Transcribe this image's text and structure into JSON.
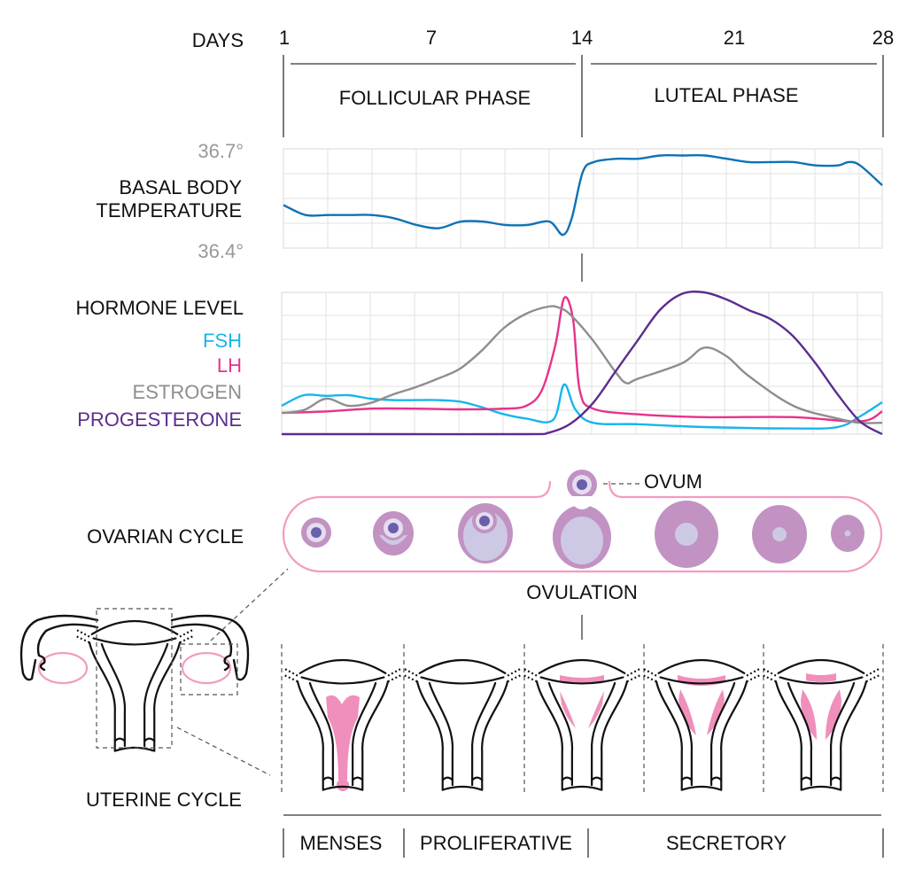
{
  "header": {
    "days_label": "DAYS",
    "day_ticks": [
      "1",
      "7",
      "14",
      "21",
      "28"
    ],
    "phases": [
      "FOLLICULAR PHASE",
      "LUTEAL PHASE"
    ]
  },
  "temperature": {
    "label_line1": "BASAL BODY",
    "label_line2": "TEMPERATURE",
    "max_label": "36.7°",
    "min_label": "36.4°",
    "color": "#0e72b5"
  },
  "hormones": {
    "title": "HORMONE LEVEL",
    "legend": [
      {
        "name": "FSH",
        "color": "#17b6ea"
      },
      {
        "name": "LH",
        "color": "#e8318c"
      },
      {
        "name": "ESTROGEN",
        "color": "#8e8e8e"
      },
      {
        "name": "PROGESTERONE",
        "color": "#5a2d8f"
      }
    ]
  },
  "ovarian": {
    "label": "OVARIAN CYCLE",
    "ovum_label": "OVUM",
    "ovulation_label": "OVULATION",
    "colors": {
      "follicle": "#c192c2",
      "antrum": "#cdc9e4",
      "nucleus": "#6b5fa9",
      "capsule": "#f39bc2"
    }
  },
  "uterine": {
    "label": "UTERINE CYCLE",
    "phases": [
      "MENSES",
      "PROLIFERATIVE",
      "SECRETORY"
    ],
    "lining_color": "#f08fbb"
  },
  "chart_data": [
    {
      "type": "line",
      "title": "BASAL BODY TEMPERATURE",
      "xlabel": "DAYS",
      "ylim": [
        36.4,
        36.7
      ],
      "xlim": [
        1,
        28
      ],
      "grid": true,
      "series": [
        {
          "name": "BASAL BODY TEMPERATURE",
          "x": [
            1,
            2,
            3,
            4,
            5,
            6,
            7,
            8,
            9,
            10,
            11,
            12,
            13,
            13.6,
            14,
            14.5,
            15,
            16,
            17,
            18,
            19,
            20,
            21,
            22,
            23,
            24,
            25,
            26,
            26.5,
            27,
            28
          ],
          "y": [
            36.53,
            36.5,
            36.5,
            36.5,
            36.5,
            36.49,
            36.47,
            36.46,
            36.48,
            36.48,
            36.47,
            36.47,
            36.48,
            36.44,
            36.49,
            36.63,
            36.66,
            36.67,
            36.67,
            36.68,
            36.68,
            36.68,
            36.67,
            36.66,
            36.66,
            36.66,
            36.65,
            36.65,
            36.66,
            36.65,
            36.59
          ]
        }
      ]
    },
    {
      "type": "line",
      "title": "HORMONE LEVEL",
      "xlabel": "DAYS",
      "xlim": [
        1,
        28
      ],
      "ylim": [
        0,
        100
      ],
      "grid": true,
      "series": [
        {
          "name": "FSH",
          "x": [
            1,
            2,
            3,
            4,
            5,
            6,
            7,
            8,
            9,
            10,
            11,
            12,
            13.2,
            13.7,
            14.2,
            15,
            17,
            20,
            24,
            26,
            27,
            28
          ],
          "y": [
            20,
            27.5,
            27,
            27.5,
            25,
            24,
            24,
            24,
            23,
            19,
            14,
            11,
            10,
            35,
            17.5,
            8,
            7,
            5,
            4,
            5,
            12.5,
            22.5
          ]
        },
        {
          "name": "LH",
          "x": [
            1,
            3,
            5,
            7,
            9,
            11,
            12,
            12.7,
            13.3,
            13.7,
            14.1,
            14.4,
            15,
            17,
            20,
            24,
            27,
            28
          ],
          "y": [
            15,
            16,
            18,
            18,
            17.5,
            18,
            20,
            31,
            62.5,
            96,
            81,
            31,
            18,
            14,
            12,
            12,
            9,
            16
          ]
        },
        {
          "name": "ESTROGEN",
          "x": [
            1,
            2,
            3,
            4,
            5,
            6,
            7,
            8,
            9,
            10,
            11,
            12,
            13,
            13.5,
            14,
            15,
            16,
            16.5,
            17,
            19,
            20,
            21,
            22,
            24,
            26,
            27,
            28
          ],
          "y": [
            15,
            17,
            25,
            20,
            22,
            28,
            33,
            39,
            46,
            59,
            75,
            85,
            90,
            89,
            84,
            66,
            44,
            36,
            39,
            50,
            61,
            55,
            41,
            20,
            11,
            8,
            8
          ]
        },
        {
          "name": "PROGESTERONE",
          "x": [
            1,
            6,
            12,
            13,
            14,
            15,
            16,
            17,
            18,
            19,
            20,
            21,
            22,
            23,
            24,
            25,
            26,
            27,
            28
          ],
          "y": [
            0,
            0,
            0,
            1,
            7.5,
            22,
            44,
            66,
            87.5,
            99,
            100,
            95,
            87.5,
            81,
            69,
            50,
            28,
            9,
            0
          ]
        }
      ]
    }
  ]
}
